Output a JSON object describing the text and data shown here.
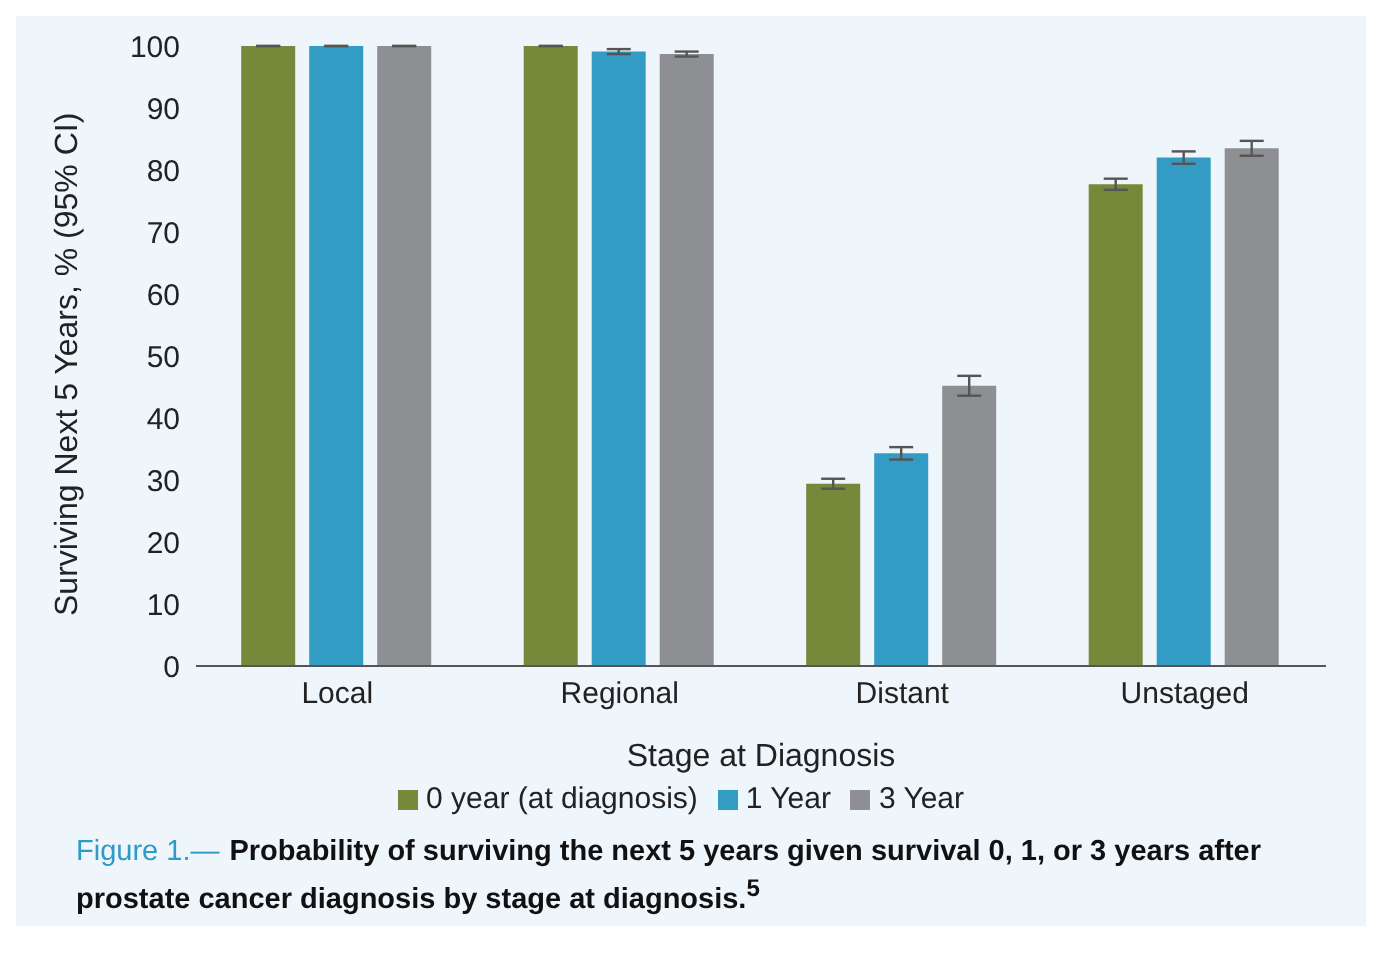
{
  "chart_data": {
    "type": "bar",
    "xlabel": "Stage at Diagnosis",
    "ylabel": "Surviving Next 5 Years, % (95% CI)",
    "categories": [
      "Local",
      "Regional",
      "Distant",
      "Unstaged"
    ],
    "series": [
      {
        "name": "0 year (at diagnosis)",
        "color": "#76893a",
        "values": [
          100,
          100,
          29.4,
          77.7
        ],
        "errors": [
          null,
          null,
          0.8,
          0.9
        ]
      },
      {
        "name": "1 Year",
        "color": "#339cc4",
        "values": [
          100,
          99.1,
          34.3,
          82.0
        ],
        "errors": [
          null,
          0.4,
          1.0,
          1.0
        ]
      },
      {
        "name": "3 Year",
        "color": "#8e8f93",
        "values": [
          100,
          98.7,
          45.2,
          83.5
        ],
        "errors": [
          null,
          0.4,
          1.6,
          1.2
        ]
      }
    ],
    "ylim": [
      0,
      100
    ],
    "yticks": [
      0,
      10,
      20,
      30,
      40,
      50,
      60,
      70,
      80,
      90,
      100
    ],
    "legend": "bottom",
    "annotations": [
      "Figure 1.—",
      "Probability of surviving the next 5 years given survival 0, 1, or 3 years after prostate cancer diagnosis by stage at diagnosis.$^{5}$"
    ]
  }
}
